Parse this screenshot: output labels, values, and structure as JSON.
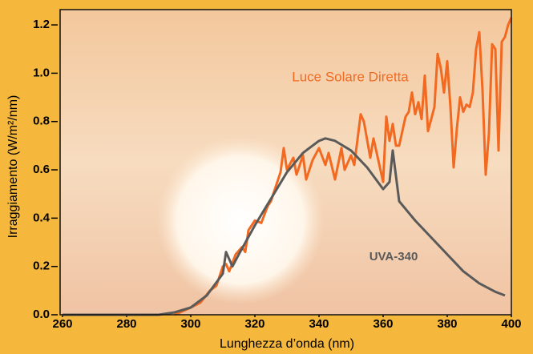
{
  "chart_data": {
    "type": "line",
    "xlabel": "Lunghezza d’onda  (nm)",
    "ylabel": "Irraggiamento (W/m²/nm)",
    "annotations": [
      "Luce Solare Diretta",
      "UVA-340"
    ],
    "xlim": [
      260,
      400
    ],
    "ylim": [
      0,
      1.25
    ],
    "xticks": [
      260,
      280,
      300,
      320,
      340,
      360,
      380,
      400
    ],
    "yticks": [
      {
        "value": 0,
        "label": "0.0"
      },
      0.2,
      0.4,
      0.6,
      0.8,
      {
        "value": 1,
        "label": "1.0"
      },
      1.2
    ],
    "series": [
      {
        "name": "Luce Solare Diretta",
        "color": "#f26a21",
        "x": [
          295,
          300,
          303,
          306,
          308,
          310,
          311,
          312,
          314,
          316,
          317,
          318,
          320,
          322,
          324,
          325,
          327,
          328,
          329,
          330,
          332,
          333,
          335,
          336,
          338,
          340,
          342,
          343,
          345,
          347,
          348,
          350,
          351,
          353,
          354,
          356,
          357,
          358,
          360,
          361,
          362,
          363,
          364,
          365,
          367,
          368,
          369,
          370,
          371,
          372,
          373,
          374,
          376,
          377,
          378,
          379,
          380,
          381,
          382,
          383,
          384,
          385,
          386,
          387,
          388,
          389,
          390,
          391,
          392,
          393,
          394,
          395,
          396,
          397,
          398,
          399,
          400
        ],
        "values": [
          0,
          0.03,
          0.05,
          0.1,
          0.12,
          0.2,
          0.21,
          0.18,
          0.25,
          0.28,
          0.26,
          0.35,
          0.39,
          0.38,
          0.45,
          0.47,
          0.55,
          0.59,
          0.69,
          0.6,
          0.65,
          0.58,
          0.66,
          0.56,
          0.64,
          0.69,
          0.62,
          0.67,
          0.56,
          0.69,
          0.6,
          0.66,
          0.62,
          0.83,
          0.8,
          0.65,
          0.73,
          0.67,
          0.55,
          0.82,
          0.72,
          0.79,
          0.7,
          0.7,
          0.82,
          0.84,
          0.92,
          0.83,
          0.88,
          0.81,
          0.99,
          0.76,
          0.86,
          1.08,
          1.02,
          0.92,
          1.05,
          0.86,
          0.61,
          0.77,
          0.9,
          0.84,
          0.87,
          0.86,
          0.92,
          1.1,
          1.17,
          0.93,
          0.58,
          0.75,
          1.12,
          1.1,
          0.68,
          1.13,
          1.15,
          1.2,
          1.23
        ]
      },
      {
        "name": "UVA-340",
        "color": "#5a5a5a",
        "x": [
          260,
          290,
          295,
          300,
          305,
          310,
          311,
          313,
          315,
          320,
          325,
          330,
          335,
          340,
          342,
          345,
          350,
          355,
          360,
          362,
          363,
          365,
          370,
          375,
          380,
          385,
          390,
          395,
          398
        ],
        "values": [
          0,
          0,
          0.01,
          0.03,
          0.08,
          0.17,
          0.26,
          0.2,
          0.25,
          0.37,
          0.48,
          0.59,
          0.67,
          0.72,
          0.73,
          0.72,
          0.68,
          0.61,
          0.52,
          0.55,
          0.68,
          0.47,
          0.39,
          0.32,
          0.25,
          0.18,
          0.13,
          0.095,
          0.08
        ]
      }
    ]
  }
}
